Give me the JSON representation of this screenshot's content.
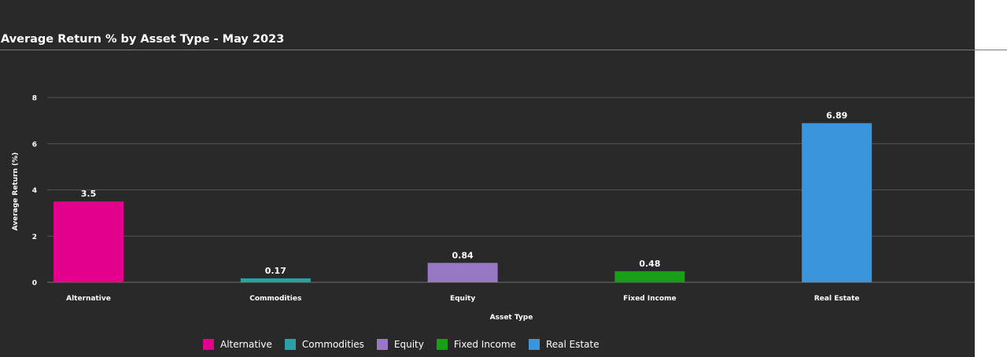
{
  "chart_data": {
    "type": "bar",
    "title": "Average Return % by Asset Type - May 2023",
    "xlabel": "Asset Type",
    "ylabel": "Average Return (%)",
    "categories": [
      "Alternative",
      "Commodities",
      "Equity",
      "Fixed Income",
      "Real Estate"
    ],
    "values": [
      3.5,
      0.17,
      0.84,
      0.48,
      6.89
    ],
    "value_labels": [
      "3.5",
      "0.17",
      "0.84",
      "0.48",
      "6.89"
    ],
    "colors": [
      "#e3008c",
      "#2ca0a7",
      "#9778c4",
      "#17a016",
      "#3b95dc"
    ],
    "ylim": [
      0,
      8
    ],
    "yticks": [
      0,
      2,
      4,
      6,
      8
    ],
    "grid": true,
    "legend": {
      "position": "bottom",
      "entries": [
        "Alternative",
        "Commodities",
        "Equity",
        "Fixed Income",
        "Real Estate"
      ]
    }
  }
}
